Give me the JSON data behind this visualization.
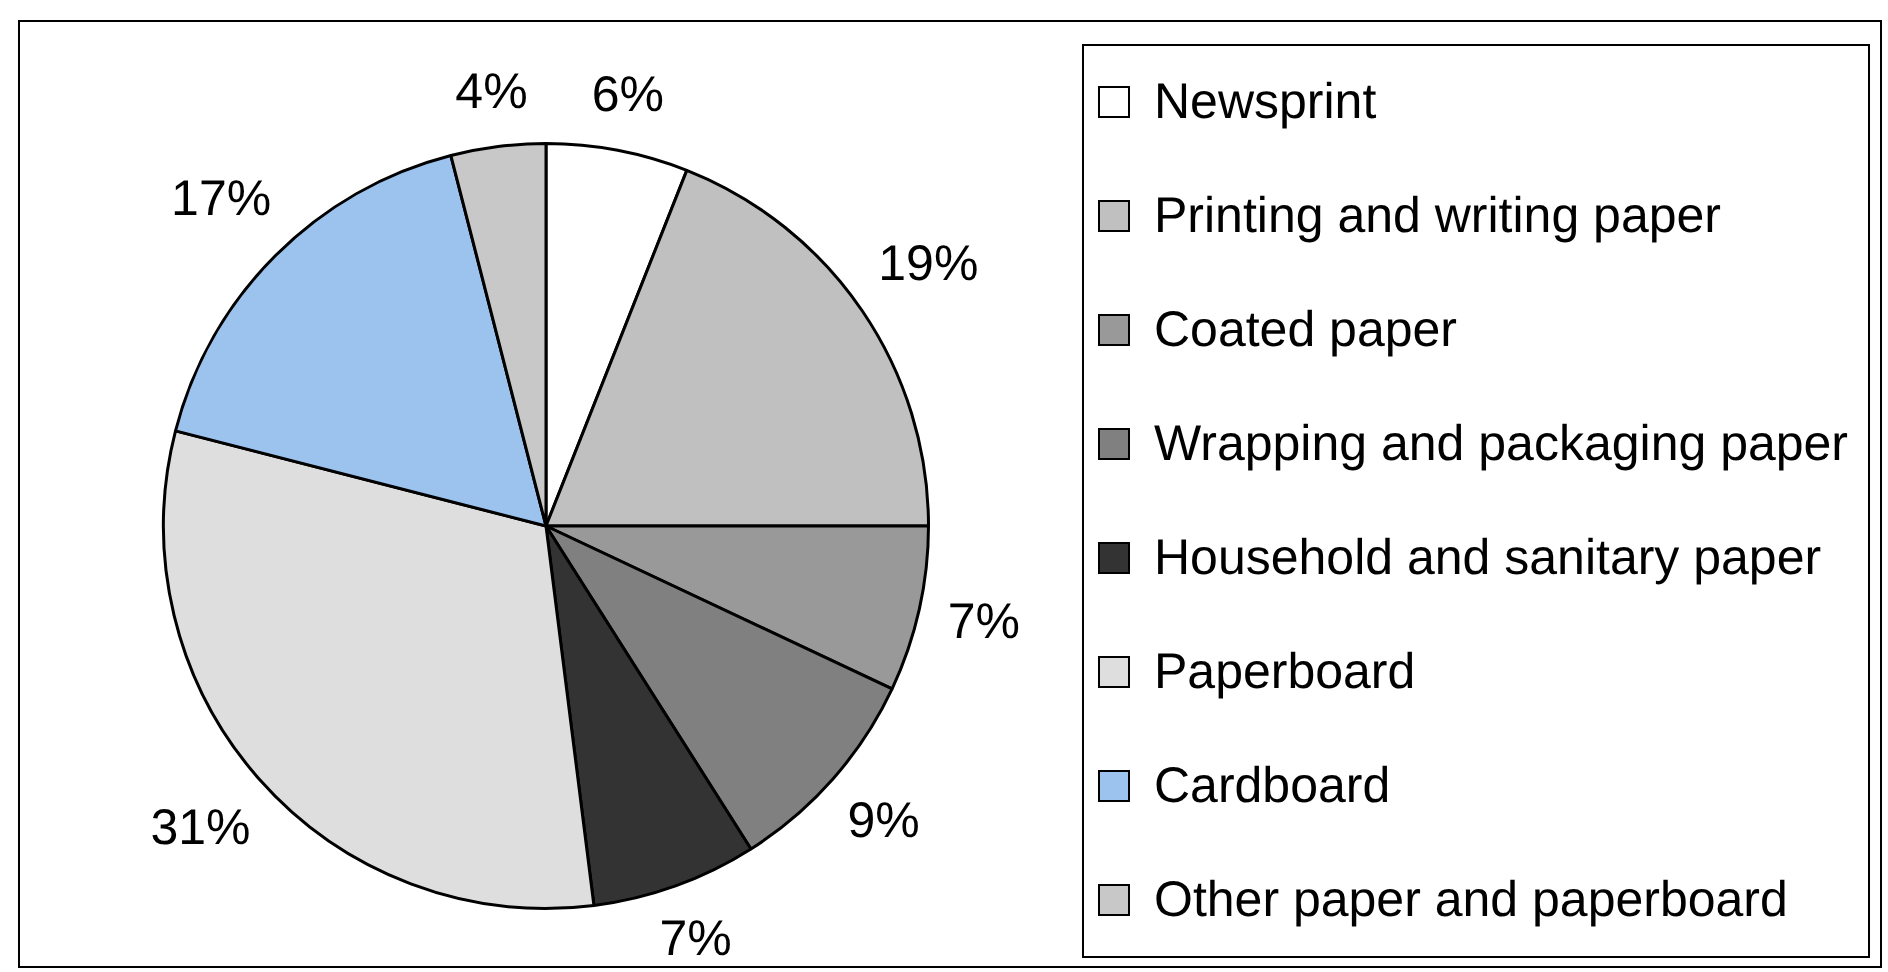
{
  "chart_data": {
    "type": "pie",
    "categories": [
      "Newsprint",
      "Printing and writing paper",
      "Coated paper",
      "Wrapping and packaging paper",
      "Household and sanitary paper",
      "Paperboard",
      "Cardboard",
      "Other paper and paperboard"
    ],
    "values": [
      6,
      19,
      7,
      9,
      7,
      31,
      17,
      4
    ],
    "value_labels": [
      "6%",
      "19%",
      "7%",
      "9%",
      "7%",
      "31%",
      "17%",
      "4%"
    ],
    "colors": [
      "#ffffff",
      "#c0c0c0",
      "#999999",
      "#808080",
      "#333333",
      "#dedede",
      "#9cc2ee",
      "#c8c8c8"
    ],
    "legend": "right"
  }
}
